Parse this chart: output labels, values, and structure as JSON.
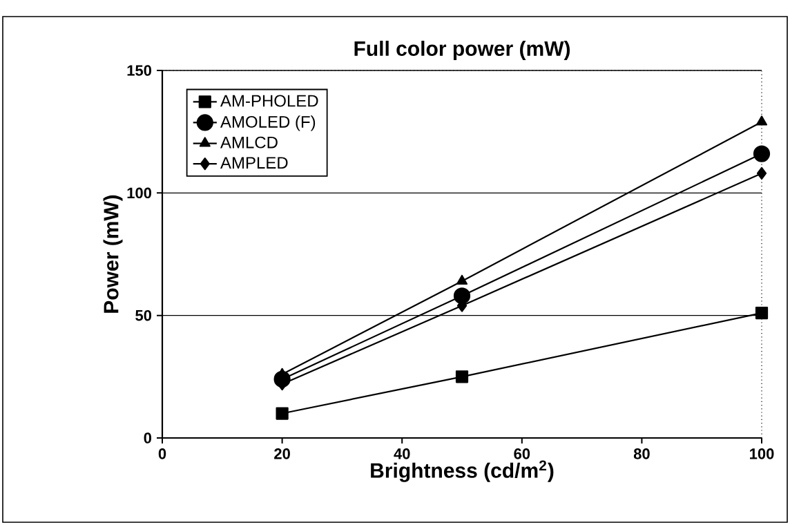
{
  "chart_data": {
    "type": "line",
    "title": "Full color  power (mW)",
    "xlabel": "Brightness (cd/m$^{2}$)",
    "ylabel": "Power (mW)",
    "xlim": [
      0,
      100
    ],
    "xticks": [
      0,
      20,
      40,
      60,
      80,
      100
    ],
    "ylim": [
      0,
      150
    ],
    "yticks": [
      0,
      50,
      100,
      150
    ],
    "grid": "y",
    "legend": "top left",
    "line_style": "solid",
    "series": [
      {
        "name": "AM-PHOLED",
        "color": "#000000",
        "marker": "square",
        "x": [
          20,
          50,
          100
        ],
        "values": [
          10,
          25,
          51
        ]
      },
      {
        "name": "AMOLED (F)",
        "color": "#000000",
        "marker": "circle",
        "x": [
          20,
          50,
          100
        ],
        "values": [
          24,
          58,
          116
        ]
      },
      {
        "name": "AMLCD",
        "color": "#000000",
        "marker": "triangle",
        "x": [
          20,
          50,
          100
        ],
        "values": [
          26,
          64,
          129
        ]
      },
      {
        "name": "AMPLED",
        "color": "#000000",
        "marker": "diamond",
        "x": [
          20,
          50,
          100
        ],
        "values": [
          22,
          54,
          108
        ]
      }
    ]
  }
}
